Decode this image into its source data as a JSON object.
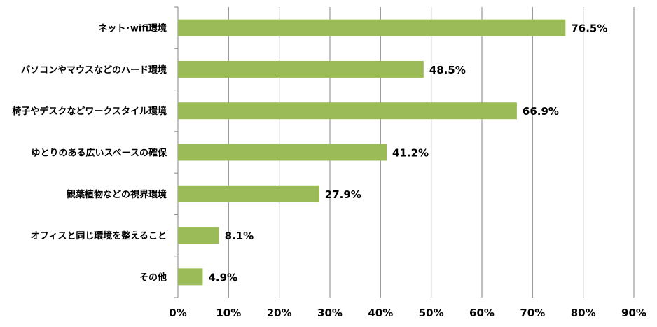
{
  "chart_data": {
    "type": "bar",
    "orientation": "horizontal",
    "categories": [
      "ネット･wifi環境",
      "パソコンやマウスなどのハード環境",
      "椅子やデスクなどワークスタイル環境",
      "ゆとりのある広いスペースの確保",
      "観葉植物などの視界環境",
      "オフィスと同じ環境を整えること",
      "その他"
    ],
    "values": [
      76.5,
      48.5,
      66.9,
      41.2,
      27.9,
      8.1,
      4.9
    ],
    "value_labels": [
      "76.5%",
      "48.5%",
      "66.9%",
      "41.2%",
      "27.9%",
      "8.1%",
      "4.9%"
    ],
    "xlim": [
      0,
      90
    ],
    "xticks": [
      0,
      10,
      20,
      30,
      40,
      50,
      60,
      70,
      80,
      90
    ],
    "xtick_labels": [
      "0%",
      "10%",
      "20%",
      "30%",
      "40%",
      "50%",
      "60%",
      "70%",
      "80%",
      "90%"
    ],
    "grid": "vertical",
    "bar_color": "#9bbb59",
    "grid_color": "#868686"
  }
}
